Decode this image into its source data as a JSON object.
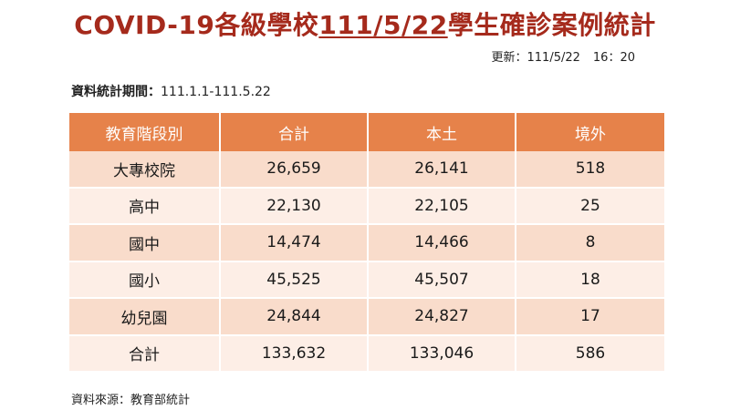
{
  "header": {
    "title_prefix": "COVID-19各級學校",
    "title_date": "111/5/22",
    "title_suffix": "學生確診案例統計",
    "updated_label": "更新：111/5/22",
    "updated_time": "16：20"
  },
  "period": {
    "label": "資料統計期間：",
    "value": "111.1.1-111.5.22"
  },
  "table": {
    "headers": [
      "教育階段別",
      "合計",
      "本土",
      "境外"
    ],
    "rows": [
      [
        "大專校院",
        "26,659",
        "26,141",
        "518"
      ],
      [
        "高中",
        "22,130",
        "22,105",
        "25"
      ],
      [
        "國中",
        "14,474",
        "14,466",
        "8"
      ],
      [
        "國小",
        "45,525",
        "45,507",
        "18"
      ],
      [
        "幼兒園",
        "24,844",
        "24,827",
        "17"
      ],
      [
        "合計",
        "133,632",
        "133,046",
        "586"
      ]
    ]
  },
  "footer": {
    "source": "資料來源：教育部統計"
  },
  "colors": {
    "title": "#a52a1c",
    "header_bg": "#e6824a",
    "row_dark": "#f9dccb",
    "row_light": "#fdeee6"
  }
}
